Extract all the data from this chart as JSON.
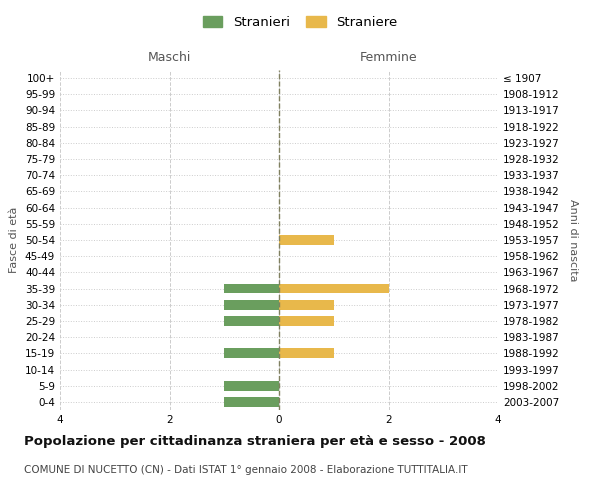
{
  "age_groups": [
    "100+",
    "95-99",
    "90-94",
    "85-89",
    "80-84",
    "75-79",
    "70-74",
    "65-69",
    "60-64",
    "55-59",
    "50-54",
    "45-49",
    "40-44",
    "35-39",
    "30-34",
    "25-29",
    "20-24",
    "15-19",
    "10-14",
    "5-9",
    "0-4"
  ],
  "birth_years": [
    "≤ 1907",
    "1908-1912",
    "1913-1917",
    "1918-1922",
    "1923-1927",
    "1928-1932",
    "1933-1937",
    "1938-1942",
    "1943-1947",
    "1948-1952",
    "1953-1957",
    "1958-1962",
    "1963-1967",
    "1968-1972",
    "1973-1977",
    "1978-1982",
    "1983-1987",
    "1988-1992",
    "1993-1997",
    "1998-2002",
    "2003-2007"
  ],
  "maschi": [
    0,
    0,
    0,
    0,
    0,
    0,
    0,
    0,
    0,
    0,
    0,
    0,
    0,
    1,
    1,
    1,
    0,
    1,
    0,
    1,
    1
  ],
  "femmine": [
    0,
    0,
    0,
    0,
    0,
    0,
    0,
    0,
    0,
    0,
    1,
    0,
    0,
    2,
    1,
    1,
    0,
    1,
    0,
    0,
    0
  ],
  "color_maschi": "#6a9e5e",
  "color_femmine": "#e8b84b",
  "title": "Popolazione per cittadinanza straniera per età e sesso - 2008",
  "subtitle": "COMUNE DI NUCETTO (CN) - Dati ISTAT 1° gennaio 2008 - Elaborazione TUTTITALIA.IT",
  "xlabel_left": "Maschi",
  "xlabel_right": "Femmine",
  "ylabel_left": "Fasce di età",
  "ylabel_right": "Anni di nascita",
  "legend_maschi": "Stranieri",
  "legend_femmine": "Straniere",
  "xlim": 4,
  "background_color": "#ffffff",
  "grid_color": "#cccccc",
  "center_line_color": "#808060",
  "title_fontsize": 9.5,
  "subtitle_fontsize": 7.5,
  "tick_fontsize": 7.5,
  "header_fontsize": 9,
  "ylabel_fontsize": 8
}
